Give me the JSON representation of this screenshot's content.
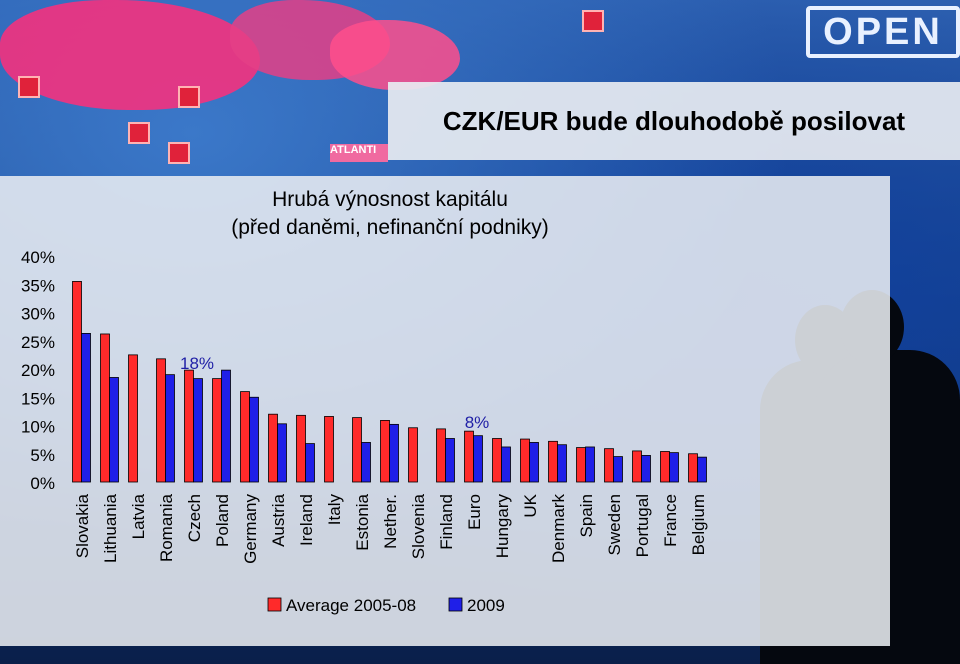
{
  "header": {
    "title": "CZK/EUR bude dlouhodobě posilovat",
    "open_sign": "OPEN",
    "map_label": "ATLANTI"
  },
  "colors": {
    "series_average": "#ff2a2a",
    "series_2009": "#1f1fe8",
    "annotation": "#1f1fa6"
  },
  "chart_data": {
    "type": "bar",
    "title": [
      "Hrubá výnosnost kapitálu",
      "(před daněmi, nefinanční podniky)"
    ],
    "xlabel": "",
    "ylabel": "",
    "ylim": [
      0,
      40
    ],
    "yticks": [
      "0%",
      "5%",
      "10%",
      "15%",
      "20%",
      "25%",
      "30%",
      "35%",
      "40%"
    ],
    "grid": false,
    "legend_position": "bottom",
    "categories": [
      "Slovakia",
      "Lithuania",
      "Latvia",
      "Romania",
      "Czech",
      "Poland",
      "Germany",
      "Austria",
      "Ireland",
      "Italy",
      "Estonia",
      "Nether.",
      "Slovenia",
      "Finland",
      "Euro",
      "Hungary",
      "UK",
      "Denmark",
      "Spain",
      "Sweden",
      "Portugal",
      "France",
      "Belgium"
    ],
    "series": [
      {
        "name": "Average 2005-08",
        "values": [
          35.5,
          26.2,
          22.5,
          21.8,
          19.8,
          18.3,
          16.0,
          12.0,
          11.8,
          11.6,
          11.4,
          10.9,
          9.6,
          9.4,
          9.0,
          7.7,
          7.6,
          7.2,
          6.1,
          5.9,
          5.5,
          5.4,
          5.0
        ]
      },
      {
        "name": "2009",
        "values": [
          26.3,
          18.5,
          null,
          19.0,
          18.3,
          19.8,
          15.0,
          10.3,
          6.8,
          null,
          7.0,
          10.2,
          null,
          7.7,
          8.2,
          6.2,
          7.0,
          6.6,
          6.2,
          4.5,
          4.7,
          5.2,
          4.4
        ]
      }
    ],
    "annotations": [
      {
        "text": "18%",
        "category": "Czech"
      },
      {
        "text": "8%",
        "category": "Euro"
      }
    ]
  }
}
